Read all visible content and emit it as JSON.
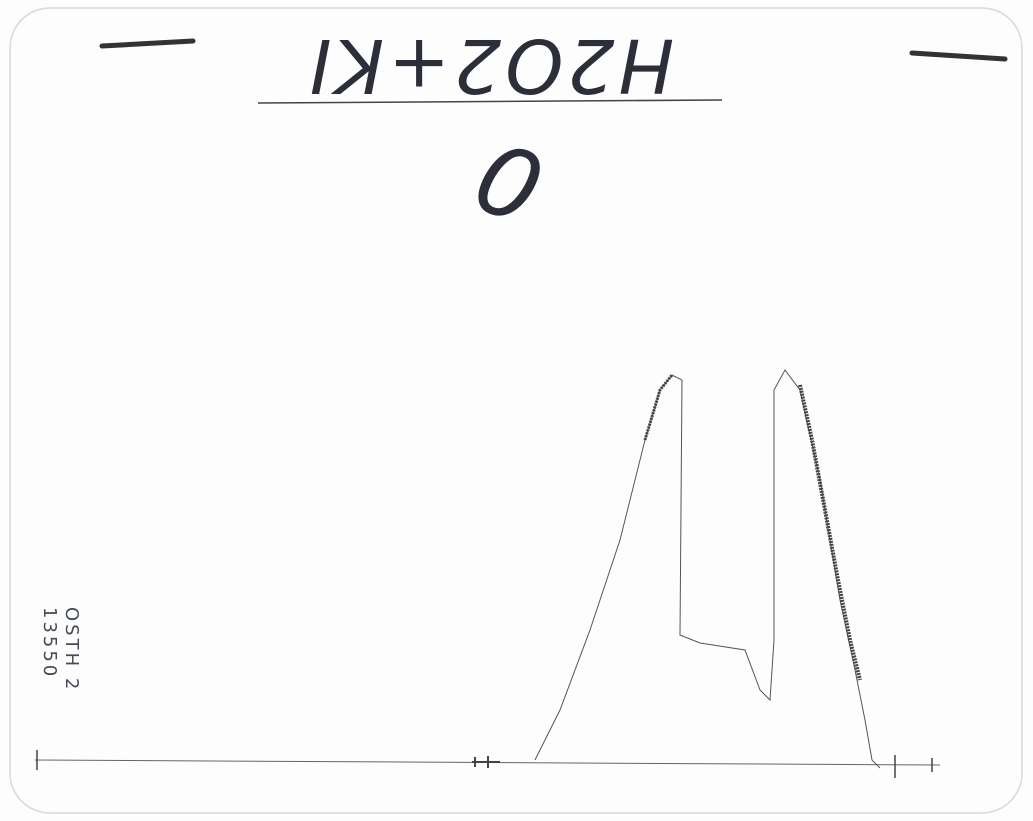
{
  "title": "H2O2+KI",
  "label": "0",
  "side_note": [
    "OSTH 2",
    "13550"
  ]
}
